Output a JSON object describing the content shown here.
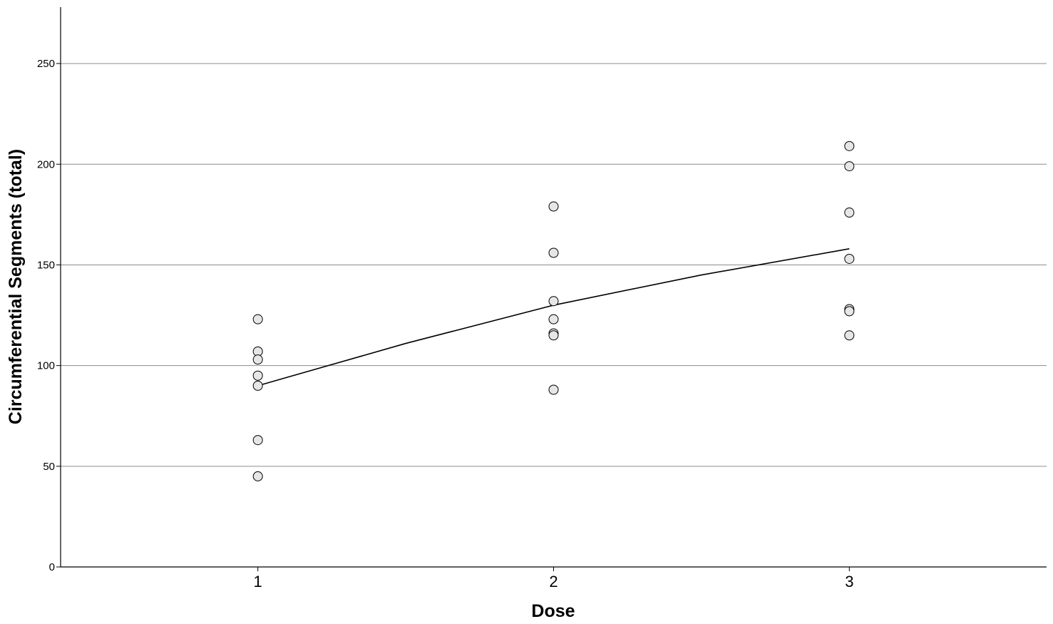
{
  "chart_data": {
    "type": "scatter",
    "xlabel": "Dose",
    "ylabel": "Circumferential Segments (total)",
    "xlim": [
      0.333,
      3.667
    ],
    "ylim": [
      0,
      278
    ],
    "x_ticks": [
      1,
      2,
      3
    ],
    "y_ticks": [
      0,
      50,
      100,
      150,
      200,
      250
    ],
    "grid": "horizontal",
    "series": [
      {
        "points": [
          {
            "x": 1,
            "y": 123
          },
          {
            "x": 1,
            "y": 107
          },
          {
            "x": 1,
            "y": 103
          },
          {
            "x": 1,
            "y": 95
          },
          {
            "x": 1,
            "y": 90
          },
          {
            "x": 1,
            "y": 63
          },
          {
            "x": 1,
            "y": 45
          },
          {
            "x": 2,
            "y": 179
          },
          {
            "x": 2,
            "y": 156
          },
          {
            "x": 2,
            "y": 132
          },
          {
            "x": 2,
            "y": 123
          },
          {
            "x": 2,
            "y": 116
          },
          {
            "x": 2,
            "y": 115
          },
          {
            "x": 2,
            "y": 88
          },
          {
            "x": 3,
            "y": 209
          },
          {
            "x": 3,
            "y": 199
          },
          {
            "x": 3,
            "y": 176
          },
          {
            "x": 3,
            "y": 153
          },
          {
            "x": 3,
            "y": 128
          },
          {
            "x": 3,
            "y": 127
          },
          {
            "x": 3,
            "y": 115
          }
        ]
      }
    ],
    "fit_line": [
      {
        "x": 1,
        "y": 90
      },
      {
        "x": 1.5,
        "y": 111
      },
      {
        "x": 2,
        "y": 130
      },
      {
        "x": 2.5,
        "y": 145
      },
      {
        "x": 3,
        "y": 158
      }
    ],
    "colors": {
      "marker_fill": "#e6e6e6",
      "marker_stroke": "#000000",
      "gridline": "#8c8c8c"
    }
  }
}
